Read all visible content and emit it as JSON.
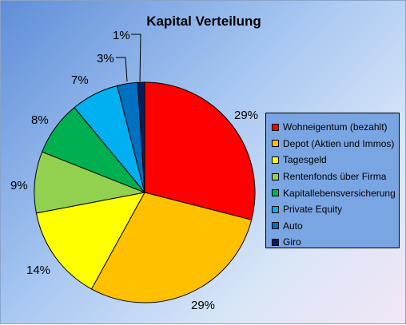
{
  "chart_data": {
    "type": "pie",
    "title": "Kapital Verteilung",
    "legend_position": "right",
    "categories": [
      "Wohneigentum (bezahlt)",
      "Depot (Aktien und Immos)",
      "Tagesgeld",
      "Rentenfonds über Firma",
      "Kapitallebensversicherung",
      "Private Equity",
      "Auto",
      "Giro"
    ],
    "values": [
      29,
      29,
      14,
      9,
      8,
      7,
      3,
      1
    ],
    "data_labels": [
      "29%",
      "29%",
      "14%",
      "9%",
      "8%",
      "7%",
      "3%",
      "1%"
    ],
    "colors": [
      "#ff0000",
      "#ffc000",
      "#ffff00",
      "#92d050",
      "#00b050",
      "#00b0f0",
      "#0070c0",
      "#002060"
    ]
  }
}
